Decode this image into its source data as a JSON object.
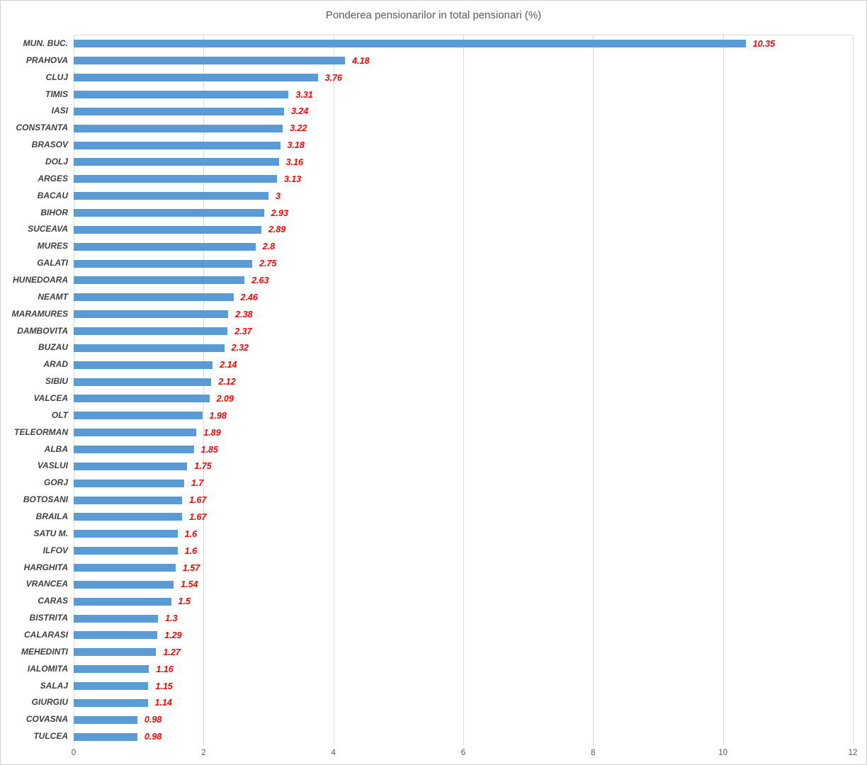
{
  "chart_data": {
    "type": "bar",
    "orientation": "horizontal",
    "title": "Ponderea pensionarilor in total pensionari (%)",
    "categories": [
      "MUN. BUC.",
      "PRAHOVA",
      "CLUJ",
      "TIMIS",
      "IASI",
      "CONSTANTA",
      "BRASOV",
      "DOLJ",
      "ARGES",
      "BACAU",
      "BIHOR",
      "SUCEAVA",
      "MURES",
      "GALATI",
      "HUNEDOARA",
      "NEAMT",
      "MARAMURES",
      "DAMBOVITA",
      "BUZAU",
      "ARAD",
      "SIBIU",
      "VALCEA",
      "OLT",
      "TELEORMAN",
      "ALBA",
      "VASLUI",
      "GORJ",
      "BOTOSANI",
      "BRAILA",
      "SATU M.",
      "ILFOV",
      "HARGHITA",
      "VRANCEA",
      "CARAS",
      "BISTRITA",
      "CALARASI",
      "MEHEDINTI",
      "IALOMITA",
      "SALAJ",
      "GIURGIU",
      "COVASNA",
      "TULCEA"
    ],
    "values": [
      10.35,
      4.18,
      3.76,
      3.31,
      3.24,
      3.22,
      3.18,
      3.16,
      3.13,
      3,
      2.93,
      2.89,
      2.8,
      2.75,
      2.63,
      2.46,
      2.38,
      2.37,
      2.32,
      2.14,
      2.12,
      2.09,
      1.98,
      1.89,
      1.85,
      1.75,
      1.7,
      1.67,
      1.67,
      1.6,
      1.6,
      1.57,
      1.54,
      1.5,
      1.3,
      1.29,
      1.27,
      1.16,
      1.15,
      1.14,
      0.98,
      0.98
    ],
    "value_labels": [
      "10.35",
      "4.18",
      "3.76",
      "3.31",
      "3.24",
      "3.22",
      "3.18",
      "3.16",
      "3.13",
      "3",
      "2.93",
      "2.89",
      "2.8",
      "2.75",
      "2.63",
      "2.46",
      "2.38",
      "2.37",
      "2.32",
      "2.14",
      "2.12",
      "2.09",
      "1.98",
      "1.89",
      "1.85",
      "1.75",
      "1.7",
      "1.67",
      "1.67",
      "1.6",
      "1.6",
      "1.57",
      "1.54",
      "1.5",
      "1.3",
      "1.29",
      "1.27",
      "1.16",
      "1.15",
      "1.14",
      "0.98",
      "0.98"
    ],
    "xlabel": "",
    "ylabel": "",
    "xlim": [
      0,
      12
    ],
    "x_ticks": [
      "0",
      "2",
      "4",
      "6",
      "8",
      "10",
      "12"
    ],
    "grid": "vertical",
    "legend": "none",
    "colors": {
      "bar": "#5b9bd5",
      "value_label": "#ff0000",
      "category_label": "#404040",
      "title": "#595959",
      "axis_tick": "#595959",
      "gridline": "#d9d9d9"
    }
  }
}
